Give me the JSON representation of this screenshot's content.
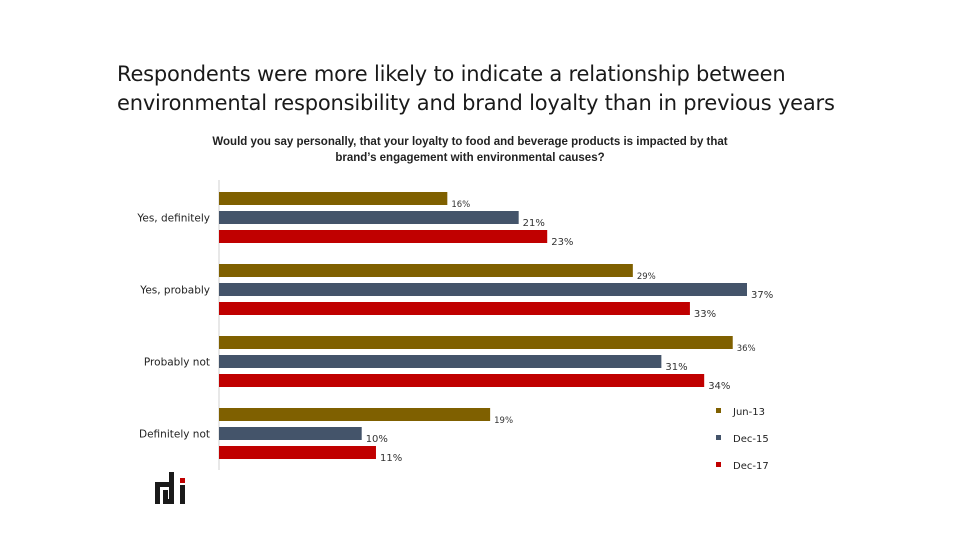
{
  "slide": {
    "title": "Respondents were more likely to indicate a relationship between environmental responsibility and brand loyalty than in previous years"
  },
  "chart_data": {
    "type": "bar",
    "orientation": "horizontal",
    "title": "Would you say personally, that your loyalty to food and beverage products is impacted by that brand’s engagement with environmental causes?",
    "categories": [
      "Yes, definitely",
      "Yes, probably",
      "Probably not",
      "Definitely not"
    ],
    "series": [
      {
        "name": "Jun-13",
        "color": "#7F6000",
        "values": [
          16,
          29,
          36,
          19
        ],
        "labels": [
          "16%",
          "29%",
          "36%",
          "19%"
        ]
      },
      {
        "name": "Dec-15",
        "color": "#44546A",
        "values": [
          21,
          37,
          31,
          10
        ],
        "labels": [
          "21%",
          "37%",
          "31%",
          "10%"
        ]
      },
      {
        "name": "Dec-17",
        "color": "#C00000",
        "values": [
          23,
          33,
          34,
          11
        ],
        "labels": [
          "23%",
          "33%",
          "34%",
          "11%"
        ]
      }
    ],
    "xlim": [
      0,
      37
    ],
    "grid": false,
    "legend_position": "bottom-right"
  },
  "logo": {
    "name": "rdi-logo"
  }
}
